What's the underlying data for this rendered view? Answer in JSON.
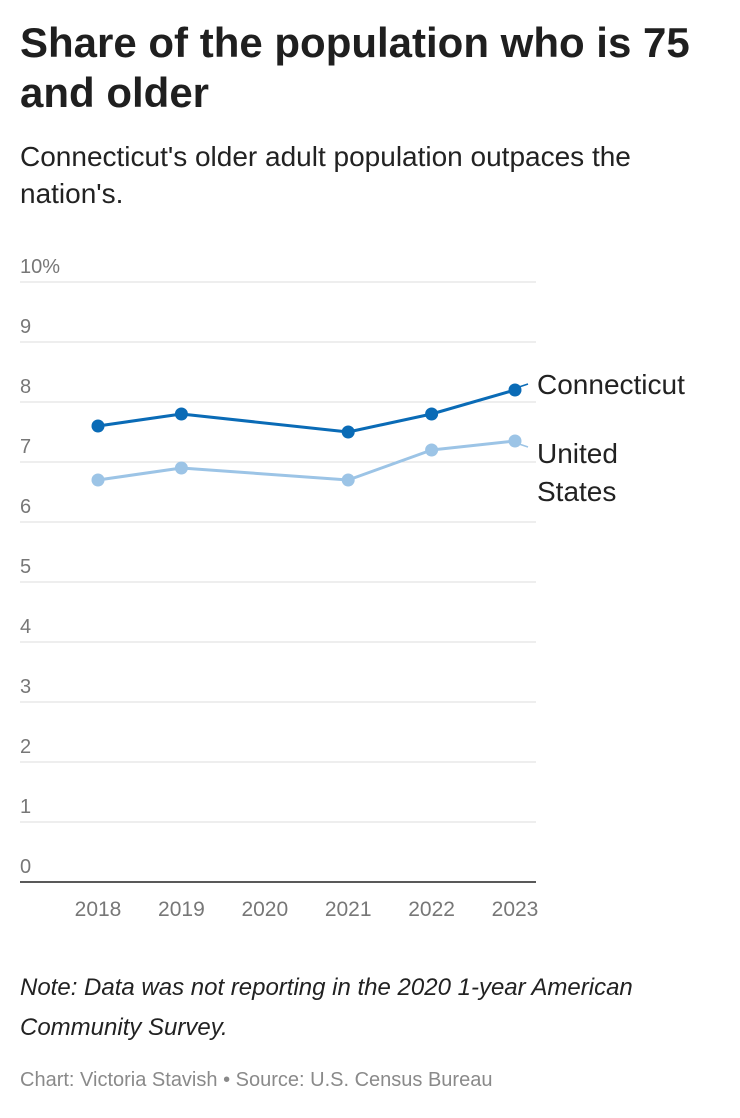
{
  "title": "Share of the population who is 75 and older",
  "subtitle": "Connecticut's older adult population outpaces the nation's.",
  "note": "Note: Data was not reporting in the 2020 1-year American Community Survey.",
  "credit": {
    "chart_label": "Chart: ",
    "author": "Victoria Stavish",
    "separator": " • ",
    "source_label": "Source: ",
    "source": "U.S. Census Bureau"
  },
  "colors": {
    "connecticut": "#0a6bb6",
    "united_states": "#9cc4e6",
    "grid": "#dddddd",
    "axis": "#222222",
    "tick_text": "#777777",
    "label_text": "#222222"
  },
  "chart_data": {
    "type": "line",
    "title": "Share of the population who is 75 and older",
    "subtitle": "Connecticut's older adult population outpaces the nation's.",
    "xlabel": "",
    "ylabel": "",
    "x": [
      "2018",
      "2019",
      "2020",
      "2021",
      "2022",
      "2023"
    ],
    "ylim": [
      0,
      10
    ],
    "y_ticks": [
      "0",
      "1",
      "2",
      "3",
      "4",
      "5",
      "6",
      "7",
      "8",
      "9",
      "10%"
    ],
    "grid": true,
    "legend": "inline-right",
    "series": [
      {
        "name": "Connecticut",
        "label_lines": [
          "Connecticut"
        ],
        "color": "#0a6bb6",
        "values": [
          7.6,
          7.8,
          null,
          7.5,
          7.8,
          8.2
        ]
      },
      {
        "name": "United States",
        "label_lines": [
          "United",
          "States"
        ],
        "color": "#9cc4e6",
        "values": [
          6.7,
          6.9,
          null,
          6.7,
          7.2,
          7.35
        ]
      }
    ]
  }
}
